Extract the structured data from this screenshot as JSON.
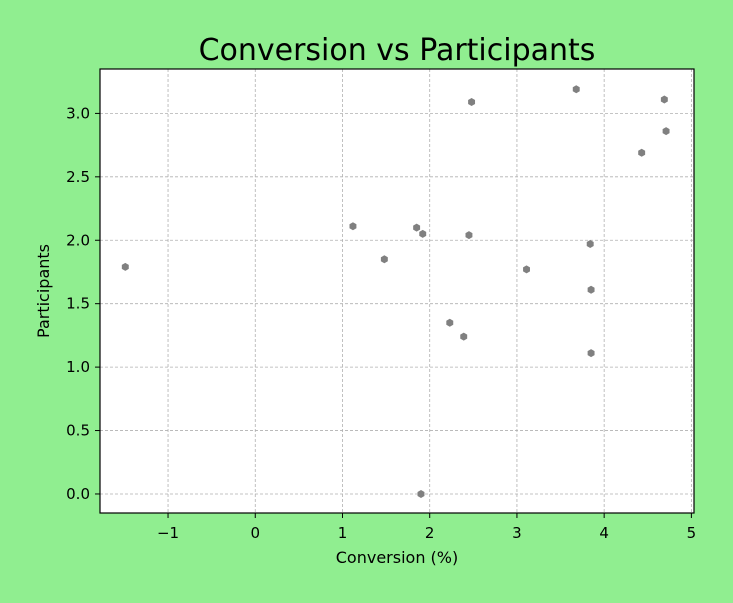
{
  "chart_data": {
    "type": "scatter",
    "title": "Conversion vs Participants",
    "xlabel": "Conversion (%)",
    "ylabel": "Participants",
    "xlim": [
      -1.78,
      5.03
    ],
    "ylim": [
      -0.15,
      3.35
    ],
    "xticks": [
      -1,
      0,
      1,
      2,
      3,
      4,
      5
    ],
    "xtick_labels": [
      "−1",
      "0",
      "1",
      "2",
      "3",
      "4",
      "5"
    ],
    "yticks": [
      0.0,
      0.5,
      1.0,
      1.5,
      2.0,
      2.5,
      3.0
    ],
    "ytick_labels": [
      "0.0",
      "0.5",
      "1.0",
      "1.5",
      "2.0",
      "2.5",
      "3.0"
    ],
    "grid": true,
    "marker_color": "#808080",
    "background_color": "#90ee90",
    "plot_background": "#ffffff",
    "points": [
      {
        "x": -1.49,
        "y": 1.79
      },
      {
        "x": 1.12,
        "y": 2.11
      },
      {
        "x": 1.48,
        "y": 1.85
      },
      {
        "x": 1.85,
        "y": 2.1
      },
      {
        "x": 1.92,
        "y": 2.05
      },
      {
        "x": 1.9,
        "y": 0.0
      },
      {
        "x": 2.23,
        "y": 1.35
      },
      {
        "x": 2.39,
        "y": 1.24
      },
      {
        "x": 2.45,
        "y": 2.04
      },
      {
        "x": 2.48,
        "y": 3.09
      },
      {
        "x": 3.11,
        "y": 1.77
      },
      {
        "x": 3.68,
        "y": 3.19
      },
      {
        "x": 3.84,
        "y": 1.97
      },
      {
        "x": 3.85,
        "y": 1.61
      },
      {
        "x": 3.85,
        "y": 1.11
      },
      {
        "x": 4.43,
        "y": 2.69
      },
      {
        "x": 4.69,
        "y": 3.11
      },
      {
        "x": 4.71,
        "y": 2.86
      }
    ]
  }
}
